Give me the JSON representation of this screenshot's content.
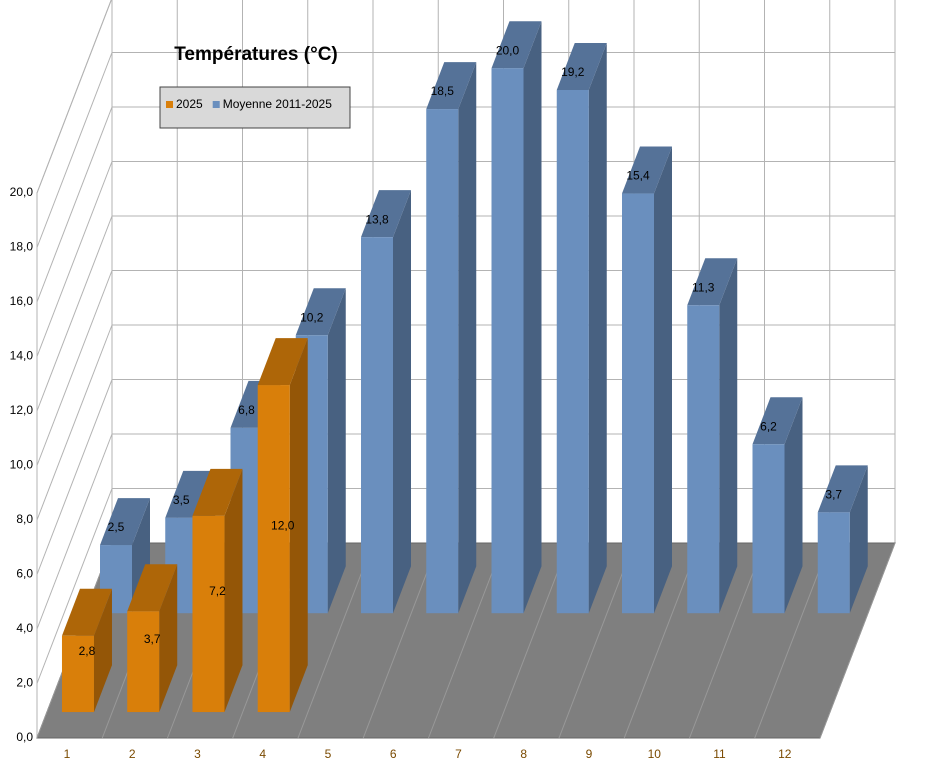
{
  "chart_data": {
    "type": "bar3d",
    "title": "Températures (°C)",
    "categories": [
      "1",
      "2",
      "3",
      "4",
      "5",
      "6",
      "7",
      "8",
      "9",
      "10",
      "11",
      "12"
    ],
    "series": [
      {
        "name": "2025",
        "color": "#d97f0a",
        "values": [
          2.8,
          3.7,
          7.2,
          12.0,
          null,
          null,
          null,
          null,
          null,
          null,
          null,
          null
        ],
        "value_labels": [
          "2,8",
          "3,7",
          "7,2",
          "12,0",
          null,
          null,
          null,
          null,
          null,
          null,
          null,
          null
        ]
      },
      {
        "name": "Moyenne 2011-2025",
        "color": "#6a8fbe",
        "values": [
          2.5,
          3.5,
          6.8,
          10.2,
          13.8,
          18.5,
          20.0,
          19.2,
          15.4,
          11.3,
          6.2,
          3.7
        ],
        "value_labels": [
          "2,5",
          "3,5",
          "6,8",
          "10,2",
          "13,8",
          "18,5",
          "20,0",
          "19,2",
          "15,4",
          "11,3",
          "6,2",
          "3,7"
        ]
      }
    ],
    "ylim": [
      0,
      20
    ],
    "yticks": [
      {
        "value": 0,
        "label": "0,0"
      },
      {
        "value": 2,
        "label": "2,0"
      },
      {
        "value": 4,
        "label": "4,0"
      },
      {
        "value": 6,
        "label": "6,0"
      },
      {
        "value": 8,
        "label": "8,0"
      },
      {
        "value": 10,
        "label": "10,0"
      },
      {
        "value": 12,
        "label": "12,0"
      },
      {
        "value": 14,
        "label": "14,0"
      },
      {
        "value": 16,
        "label": "16,0"
      },
      {
        "value": 18,
        "label": "18,0"
      },
      {
        "value": 20,
        "label": "20,0"
      }
    ],
    "grid": true,
    "legend": "top-left"
  }
}
